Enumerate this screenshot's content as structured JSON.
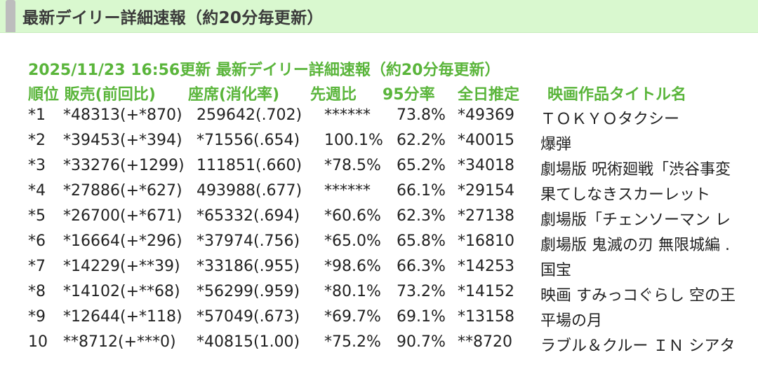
{
  "header": {
    "title": "最新デイリー詳細速報（約20分毎更新）"
  },
  "report": {
    "updated_title": "2025/11/23 16:56更新 最新デイリー詳細速報（約20分毎更新）",
    "columns": {
      "rank_sales": "順位 販売(前回比)",
      "seats": "座席(消化率)",
      "week": "先週比",
      "rate95": "95分率",
      "estimate": "全日推定",
      "title": "映画作品タイトル名"
    },
    "rows": [
      {
        "rank": "*1",
        "sales": "*48313(+*870)",
        "seats": "259642(.702)",
        "week": "******",
        "rate": "73.8%",
        "est": "*49369",
        "title": "ＴＯＫＹＯタクシー"
      },
      {
        "rank": "*2",
        "sales": "*39453(+*394)",
        "seats": "*71556(.654)",
        "week": "100.1%",
        "rate": "62.2%",
        "est": "*40015",
        "title": "爆弾"
      },
      {
        "rank": "*3",
        "sales": "*33276(+1299)",
        "seats": "111851(.660)",
        "week": "*78.5%",
        "rate": "65.2%",
        "est": "*34018",
        "title": "劇場版 呪術廻戦「渋谷事変"
      },
      {
        "rank": "*4",
        "sales": "*27886(+*627)",
        "seats": "493988(.677)",
        "week": "******",
        "rate": "66.1%",
        "est": "*29154",
        "title": "果てしなきスカーレット"
      },
      {
        "rank": "*5",
        "sales": "*26700(+*671)",
        "seats": "*65332(.694)",
        "week": "*60.6%",
        "rate": "62.3%",
        "est": "*27138",
        "title": "劇場版「チェンソーマン レ"
      },
      {
        "rank": "*6",
        "sales": "*16664(+*296)",
        "seats": "*37974(.756)",
        "week": "*65.0%",
        "rate": "65.8%",
        "est": "*16810",
        "title": "劇場版 鬼滅の刃 無限城編 ."
      },
      {
        "rank": "*7",
        "sales": "*14229(+**39)",
        "seats": "*33186(.955)",
        "week": "*98.6%",
        "rate": "66.3%",
        "est": "*14253",
        "title": "国宝"
      },
      {
        "rank": "*8",
        "sales": "*14102(+**68)",
        "seats": "*56299(.959)",
        "week": "*80.1%",
        "rate": "73.2%",
        "est": "*14152",
        "title": "映画 すみっコぐらし 空の王"
      },
      {
        "rank": "*9",
        "sales": "*12644(+*118)",
        "seats": "*57049(.673)",
        "week": "*69.7%",
        "rate": "69.1%",
        "est": "*13158",
        "title": "平場の月"
      },
      {
        "rank": "10",
        "sales": "**8712(+***0)",
        "seats": "*40815(1.00)",
        "week": "*75.2%",
        "rate": "90.7%",
        "est": "**8720",
        "title": "ラブル＆クルー ＩＮ シアタ"
      }
    ]
  }
}
